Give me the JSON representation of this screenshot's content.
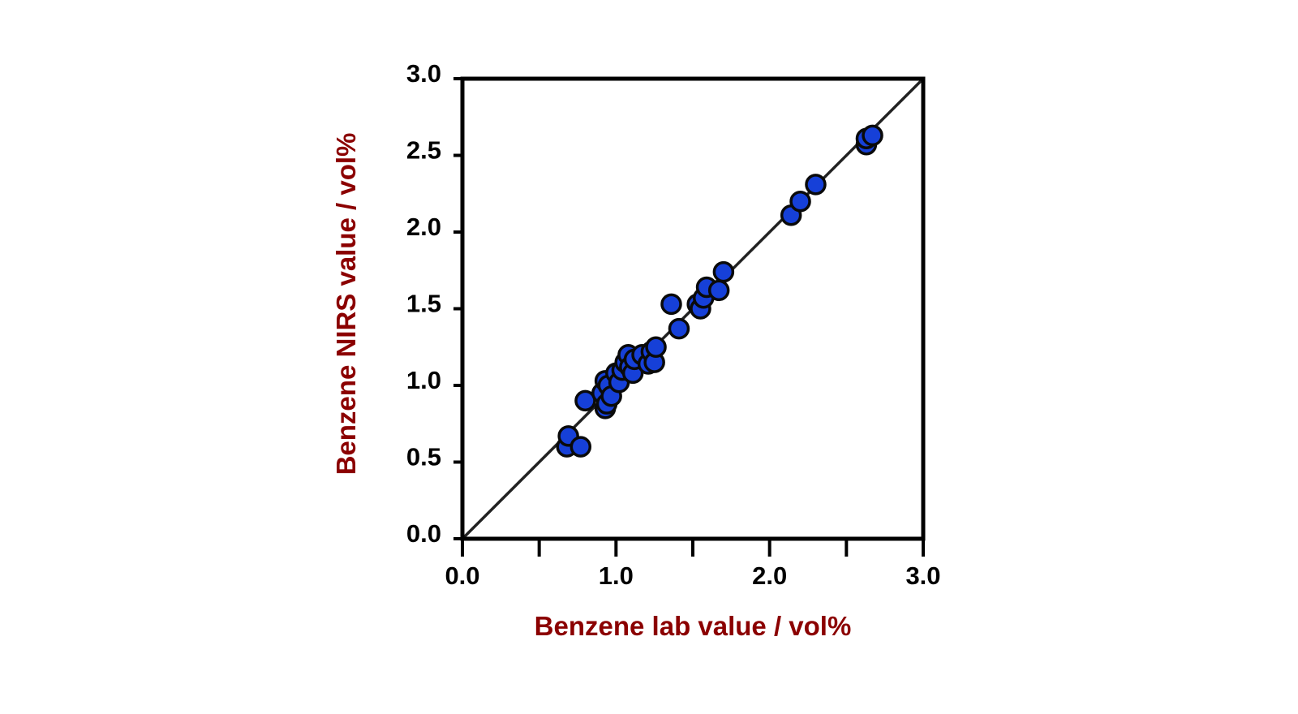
{
  "chart_data": {
    "type": "scatter",
    "xlabel": "Benzene lab value / vol%",
    "ylabel": "Benzene NIRS value / vol%",
    "xlim": [
      0,
      3
    ],
    "ylim": [
      0,
      3
    ],
    "x_ticks": [
      "0.0",
      "1.0",
      "2.0",
      "3.0"
    ],
    "y_ticks": [
      "0.0",
      "0.5",
      "1.0",
      "1.5",
      "2.0",
      "2.5",
      "3.0"
    ],
    "x_minor_ticks": [
      0.5,
      1.5,
      2.5
    ],
    "reference_line": {
      "type": "y=x",
      "from": [
        0,
        0
      ],
      "to": [
        3,
        3
      ]
    },
    "grid": false,
    "colors": {
      "marker_fill": "#1640d8",
      "marker_edge": "#0a0a0a",
      "axis": "#000000",
      "axis_title": "#8b0000",
      "reference_line": "#222222"
    },
    "series": [
      {
        "points": [
          {
            "x": 0.68,
            "y": 0.6
          },
          {
            "x": 0.69,
            "y": 0.67
          },
          {
            "x": 0.77,
            "y": 0.6
          },
          {
            "x": 0.8,
            "y": 0.9
          },
          {
            "x": 0.91,
            "y": 0.95
          },
          {
            "x": 0.93,
            "y": 0.85
          },
          {
            "x": 0.94,
            "y": 0.88
          },
          {
            "x": 0.93,
            "y": 1.03
          },
          {
            "x": 0.95,
            "y": 1.0
          },
          {
            "x": 0.97,
            "y": 0.93
          },
          {
            "x": 1.0,
            "y": 1.08
          },
          {
            "x": 1.02,
            "y": 1.02
          },
          {
            "x": 1.04,
            "y": 1.1
          },
          {
            "x": 1.06,
            "y": 1.15
          },
          {
            "x": 1.08,
            "y": 1.2
          },
          {
            "x": 1.09,
            "y": 1.12
          },
          {
            "x": 1.11,
            "y": 1.08
          },
          {
            "x": 1.12,
            "y": 1.17
          },
          {
            "x": 1.17,
            "y": 1.2
          },
          {
            "x": 1.21,
            "y": 1.14
          },
          {
            "x": 1.23,
            "y": 1.22
          },
          {
            "x": 1.25,
            "y": 1.15
          },
          {
            "x": 1.26,
            "y": 1.25
          },
          {
            "x": 1.36,
            "y": 1.53
          },
          {
            "x": 1.41,
            "y": 1.37
          },
          {
            "x": 1.53,
            "y": 1.53
          },
          {
            "x": 1.55,
            "y": 1.5
          },
          {
            "x": 1.57,
            "y": 1.57
          },
          {
            "x": 1.59,
            "y": 1.64
          },
          {
            "x": 1.67,
            "y": 1.62
          },
          {
            "x": 1.7,
            "y": 1.74
          },
          {
            "x": 2.14,
            "y": 2.11
          },
          {
            "x": 2.2,
            "y": 2.2
          },
          {
            "x": 2.3,
            "y": 2.31
          },
          {
            "x": 2.63,
            "y": 2.57
          },
          {
            "x": 2.63,
            "y": 2.61
          },
          {
            "x": 2.67,
            "y": 2.63
          }
        ]
      }
    ]
  }
}
